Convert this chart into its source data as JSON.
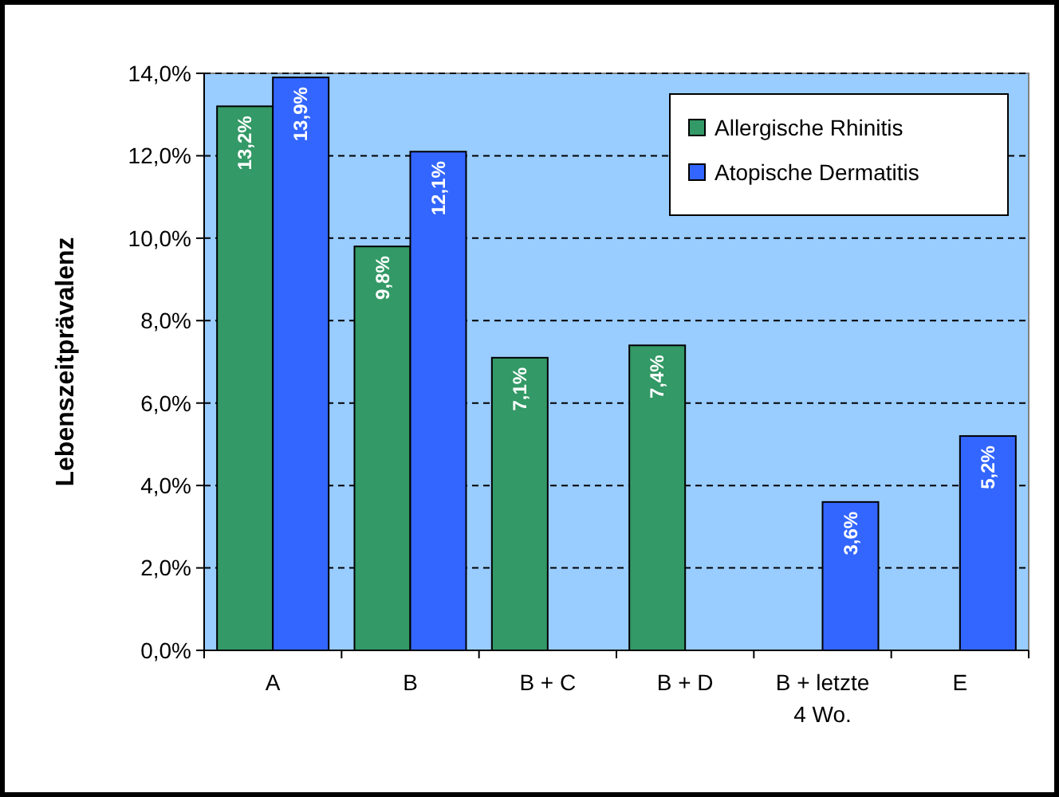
{
  "chart_data": {
    "type": "bar",
    "ylabel": "Lebenszeitprävalenz",
    "categories": [
      "A",
      "B",
      "B + C",
      "B + D",
      "B + letzte 4 Wo.",
      "E"
    ],
    "series": [
      {
        "name": "Allergische Rhinitis",
        "color": "#339966",
        "values": [
          13.2,
          9.8,
          7.1,
          7.4,
          null,
          null
        ],
        "value_labels": [
          "13,2%",
          "9,8%",
          "7,1%",
          "7,4%",
          null,
          null
        ]
      },
      {
        "name": "Atopische Dermatitis",
        "color": "#3366ff",
        "values": [
          13.9,
          12.1,
          null,
          null,
          3.6,
          5.2
        ],
        "value_labels": [
          "13,9%",
          "12,1%",
          null,
          null,
          "3,6%",
          "5,2%"
        ]
      }
    ],
    "ylim": [
      0,
      14
    ],
    "yticks": [
      {
        "value": 0,
        "label": "0,0%"
      },
      {
        "value": 2,
        "label": "2,0%"
      },
      {
        "value": 4,
        "label": "4,0%"
      },
      {
        "value": 6,
        "label": "6,0%"
      },
      {
        "value": 8,
        "label": "8,0%"
      },
      {
        "value": 10,
        "label": "10,0%"
      },
      {
        "value": 12,
        "label": "12,0%"
      },
      {
        "value": 14,
        "label": "14,0%"
      }
    ],
    "grid": "y",
    "legend": "top right"
  }
}
